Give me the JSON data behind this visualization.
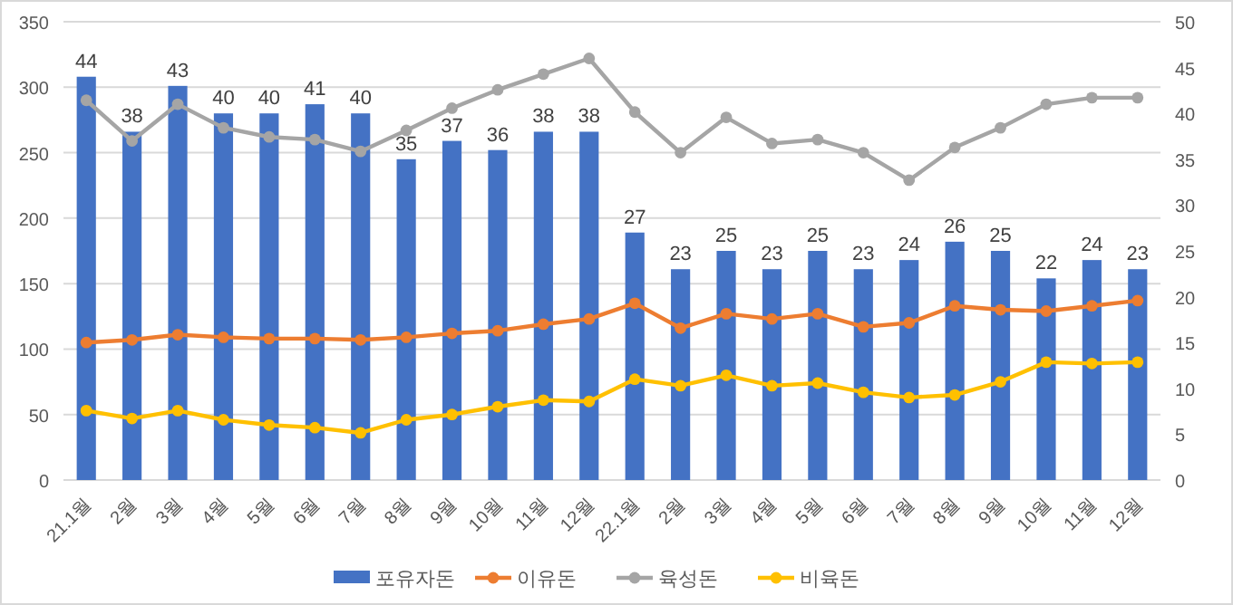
{
  "chart_data": {
    "type": "bar",
    "categories": [
      "21.1월",
      "2월",
      "3월",
      "4월",
      "5월",
      "6월",
      "7월",
      "8월",
      "9월",
      "10월",
      "11월",
      "12월",
      "22.1월",
      "2월",
      "3월",
      "4월",
      "5월",
      "6월",
      "7월",
      "8월",
      "9월",
      "10월",
      "11월",
      "12월"
    ],
    "series": [
      {
        "name": "포유자돈",
        "axis": "y2",
        "color": "#4472c4",
        "values": [
          44,
          38,
          43,
          40,
          40,
          41,
          40,
          35,
          37,
          36,
          38,
          38,
          27,
          23,
          25,
          23,
          25,
          23,
          24,
          26,
          25,
          22,
          24,
          23
        ],
        "value_labels": [
          "44",
          "38",
          "43",
          "40",
          "40",
          "41",
          "40",
          "35",
          "37",
          "36",
          "38",
          "38",
          "27",
          "23",
          "25",
          "23",
          "25",
          "23",
          "24",
          "26",
          "25",
          "22",
          "24",
          "23"
        ]
      },
      {
        "name": "이유돈",
        "type": "line",
        "color": "#ed7d31",
        "values": [
          105,
          107,
          111,
          109,
          108,
          108,
          107,
          109,
          112,
          114,
          119,
          123,
          135,
          116,
          127,
          123,
          127,
          117,
          120,
          133,
          130,
          129,
          133,
          137
        ]
      },
      {
        "name": "육성돈",
        "type": "line",
        "color": "#a5a5a5",
        "values": [
          290,
          259,
          287,
          269,
          262,
          260,
          251,
          267,
          284,
          298,
          310,
          322,
          281,
          250,
          277,
          257,
          260,
          250,
          229,
          254,
          269,
          287,
          292,
          292
        ]
      },
      {
        "name": "비육돈",
        "type": "line",
        "color": "#ffc000",
        "values": [
          53,
          47,
          53,
          46,
          42,
          40,
          36,
          46,
          50,
          56,
          61,
          60,
          77,
          72,
          80,
          72,
          74,
          67,
          63,
          65,
          75,
          90,
          89,
          90
        ]
      }
    ],
    "ylim": [
      0,
      350
    ],
    "yticks": [
      0,
      50,
      100,
      150,
      200,
      250,
      300,
      350
    ],
    "y2lim": [
      0,
      50
    ],
    "y2ticks": [
      0,
      5,
      10,
      15,
      20,
      25,
      30,
      35,
      40,
      45,
      50
    ],
    "grid": "y",
    "legend": "bottom",
    "marker": "circle"
  }
}
